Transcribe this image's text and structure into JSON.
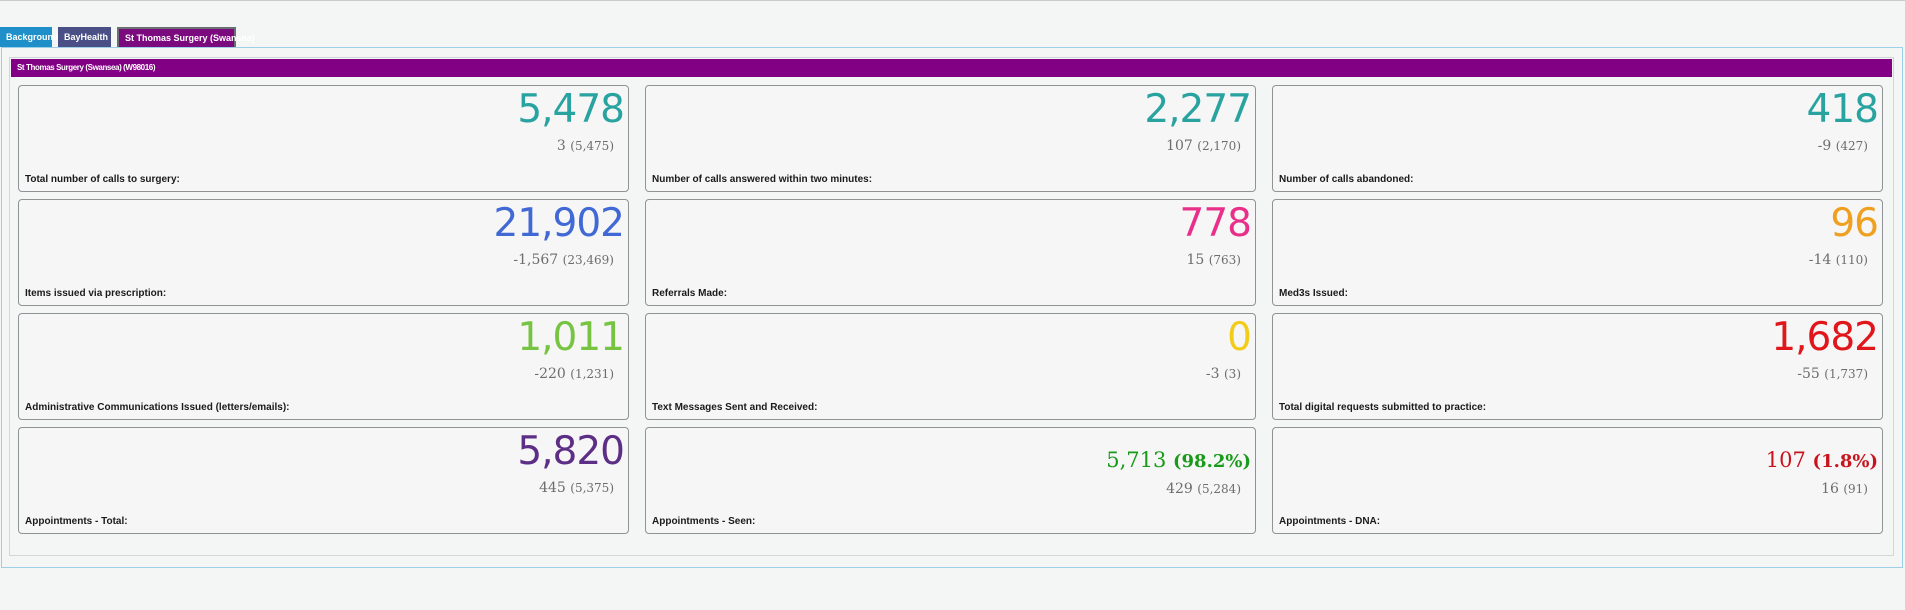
{
  "tabs": [
    {
      "label": "Background",
      "color": "#1e8fc8"
    },
    {
      "label": "BayHealth",
      "color": "#4a4f86"
    },
    {
      "label": "St Thomas Surgery (Swansea)",
      "color": "#7b0a7f",
      "selected": true
    }
  ],
  "practice": {
    "header": "St Thomas Surgery (Swansea) (W98016)"
  },
  "cards": [
    {
      "label": "Total number of calls to surgery:",
      "value": "5,478",
      "color": "#29a3a0",
      "change": "3",
      "previous": "(5,475)"
    },
    {
      "label": "Number of calls answered within two minutes:",
      "value": "2,277",
      "color": "#29a3a0",
      "change": "107",
      "previous": "(2,170)"
    },
    {
      "label": "Number of calls abandoned:",
      "value": "418",
      "color": "#29a3a0",
      "change": "-9",
      "previous": "(427)"
    },
    {
      "label": "Items issued via prescription:",
      "value": "21,902",
      "color": "#4169d6",
      "change": "-1,567",
      "previous": "(23,469)"
    },
    {
      "label": "Referrals Made:",
      "value": "778",
      "color": "#e8308a",
      "change": "15",
      "previous": "(763)"
    },
    {
      "label": "Med3s Issued:",
      "value": "96",
      "color": "#f0a020",
      "change": "-14",
      "previous": "(110)"
    },
    {
      "label": "Administrative Communications Issued (letters/emails):",
      "value": "1,011",
      "color": "#76c442",
      "change": "-220",
      "previous": "(1,231)"
    },
    {
      "label": "Text Messages Sent and Received:",
      "value": "0",
      "color": "#f2cc1a",
      "change": "-3",
      "previous": "(3)"
    },
    {
      "label": "Total digital requests submitted to practice:",
      "value": "1,682",
      "color": "#e0161b",
      "change": "-55",
      "previous": "(1,737)"
    },
    {
      "label": "Appointments - Total:",
      "value": "5,820",
      "color": "#5c2e86",
      "change": "445",
      "previous": "(5,375)"
    },
    {
      "label": "Appointments - Seen:",
      "value": "5,713",
      "percent": "(98.2%)",
      "color": "#1a9a1a",
      "change": "429",
      "previous": "(5,284)"
    },
    {
      "label": "Appointments - DNA:",
      "value": "107",
      "percent": "(1.8%)",
      "color": "#c8141c",
      "change": "16",
      "previous": "(91)"
    }
  ]
}
